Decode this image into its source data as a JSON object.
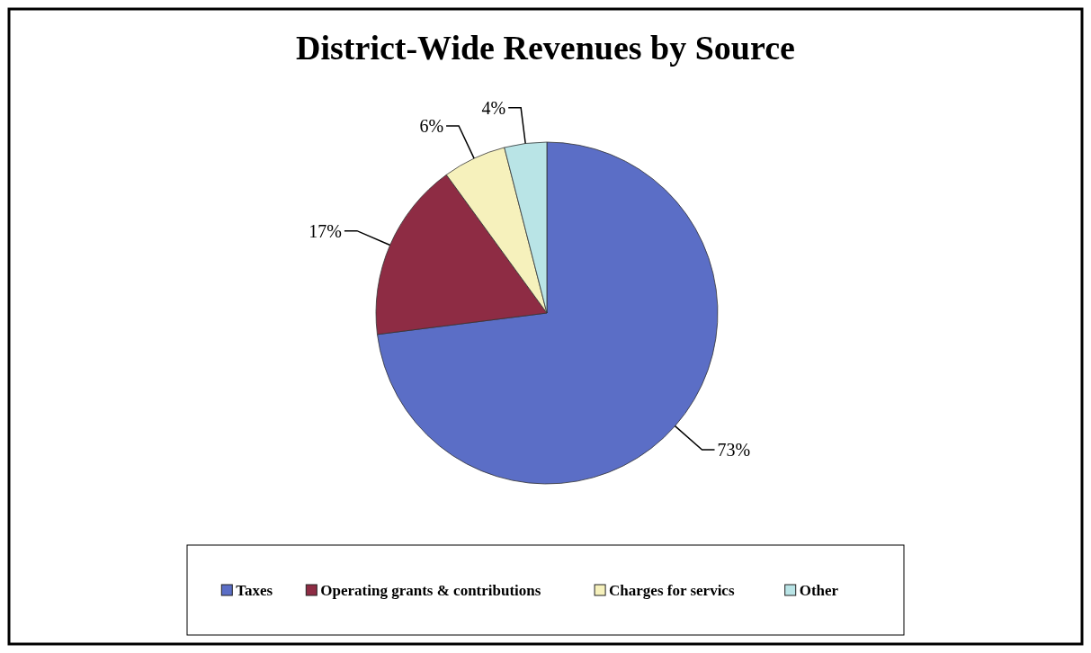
{
  "chart_data": {
    "type": "pie",
    "title": "District-Wide Revenues by Source",
    "categories": [
      "Taxes",
      "Operating grants & contributions",
      "Charges for servics",
      "Other"
    ],
    "values": [
      73,
      17,
      6,
      4
    ],
    "colors": [
      "#5b6ec6",
      "#8e2c44",
      "#f6f1bc",
      "#b9e4e6"
    ],
    "value_labels": [
      "73%",
      "17%",
      "6%",
      "4%"
    ],
    "legend": "bottom"
  }
}
